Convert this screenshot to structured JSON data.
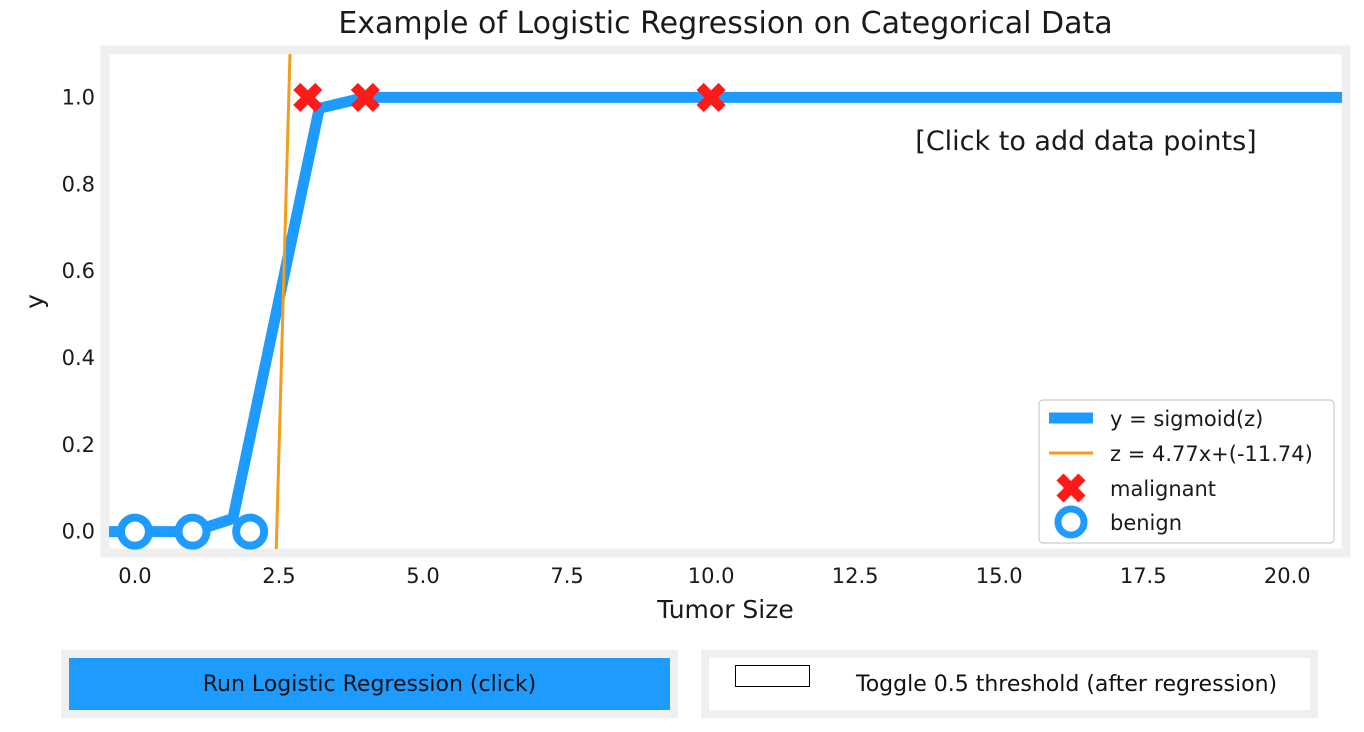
{
  "chart_data": {
    "type": "scatter",
    "title": "Example of Logistic Regression on Categorical Data",
    "xlabel": "Tumor Size",
    "ylabel": "y",
    "xlim": [
      -0.45,
      20.95
    ],
    "ylim": [
      -0.04,
      1.1
    ],
    "xticks": [
      "0.0",
      "2.5",
      "5.0",
      "7.5",
      "10.0",
      "12.5",
      "15.0",
      "17.5",
      "20.0"
    ],
    "yticks": [
      "0.0",
      "0.2",
      "0.4",
      "0.6",
      "0.8",
      "1.0"
    ],
    "annotation": "[Click to add data points]",
    "legend_position": "lower-right",
    "colors": {
      "blue": "#1e9bff",
      "orange": "#f39c1e",
      "red": "#ff1a1a",
      "panel": "#efefef"
    },
    "series": [
      {
        "name": "y = sigmoid(z)",
        "kind": "line",
        "x": [
          -0.45,
          0.0,
          1.0,
          1.7,
          3.2,
          4.0,
          5.0,
          10.0,
          20.95
        ],
        "y": [
          0.0,
          0.0,
          0.0,
          0.03,
          0.975,
          1.0,
          1.0,
          1.0,
          1.0
        ]
      },
      {
        "name": "z = 4.77x+(-11.74)",
        "kind": "line",
        "x": [
          2.453,
          2.691
        ],
        "y": [
          -0.04,
          1.1
        ]
      },
      {
        "name": "malignant",
        "kind": "scatter",
        "marker": "x",
        "x": [
          3,
          4,
          10
        ],
        "y": [
          1,
          1,
          1
        ]
      },
      {
        "name": "benign",
        "kind": "scatter",
        "marker": "o",
        "x": [
          0,
          1,
          2
        ],
        "y": [
          0,
          0,
          0
        ]
      }
    ]
  },
  "buttons": {
    "run_label": "Run Logistic Regression (click)",
    "toggle_label": "Toggle 0.5 threshold (after regression)"
  }
}
